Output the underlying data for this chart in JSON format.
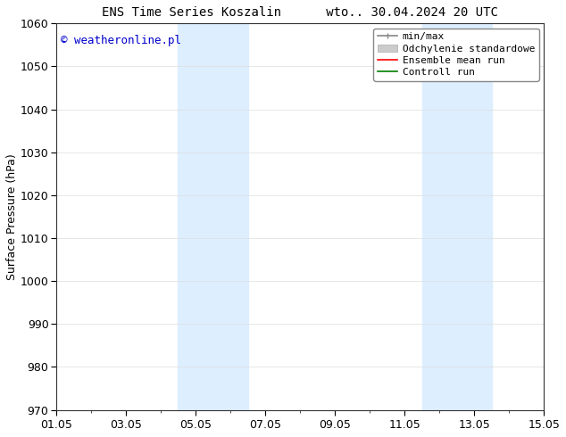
{
  "title": "ENS Time Series Koszalin      wto.. 30.04.2024 20 UTC",
  "ylabel": "Surface Pressure (hPa)",
  "ylim": [
    970,
    1060
  ],
  "yticks": [
    970,
    980,
    990,
    1000,
    1010,
    1020,
    1030,
    1040,
    1050,
    1060
  ],
  "xlim_start": 0,
  "xlim_end": 14,
  "xtick_labels": [
    "01.05",
    "03.05",
    "05.05",
    "07.05",
    "09.05",
    "11.05",
    "13.05",
    "15.05"
  ],
  "xtick_positions": [
    0,
    2,
    4,
    6,
    8,
    10,
    12,
    14
  ],
  "shade_bands": [
    {
      "xmin": 3.5,
      "xmax": 5.5
    },
    {
      "xmin": 10.5,
      "xmax": 12.5
    }
  ],
  "shade_color": "#ddeeff",
  "background_color": "#ffffff",
  "watermark_text": "© weatheronline.pl",
  "watermark_color": "#0000cc",
  "legend_entries": [
    {
      "label": "min/max",
      "color": "#888888"
    },
    {
      "label": "Odchylenie standardowe",
      "color": "#cccccc"
    },
    {
      "label": "Ensemble mean run",
      "color": "#ff0000"
    },
    {
      "label": "Controll run",
      "color": "#008000"
    }
  ],
  "grid_color": "#dddddd",
  "title_fontsize": 10,
  "ylabel_fontsize": 9,
  "tick_fontsize": 9,
  "legend_fontsize": 8,
  "watermark_fontsize": 9
}
